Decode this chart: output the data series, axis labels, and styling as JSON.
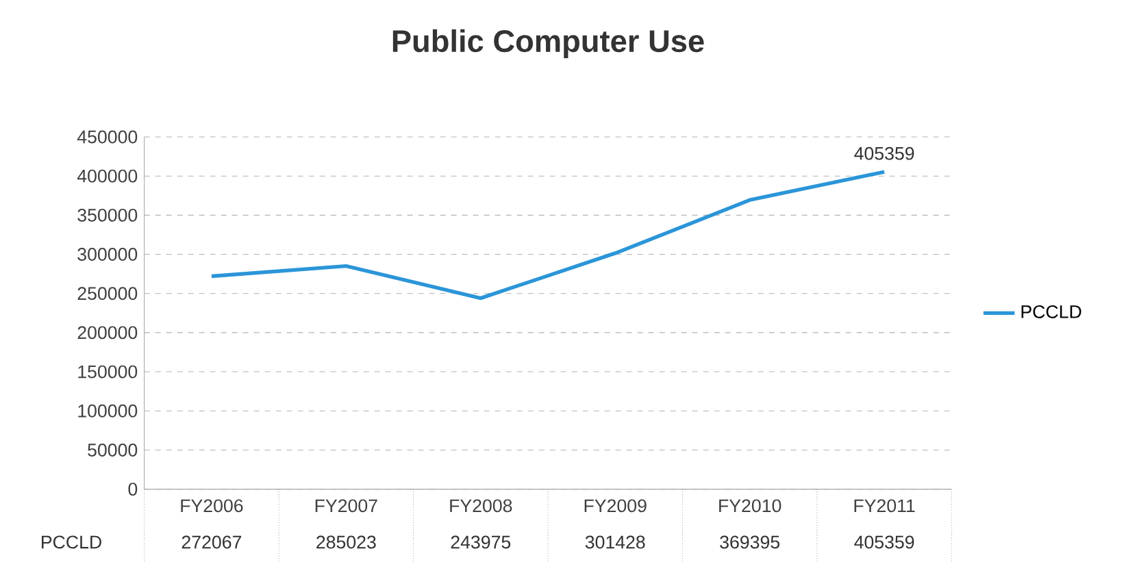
{
  "chart_data": {
    "type": "line",
    "title": "Public Computer Use",
    "categories": [
      "FY2006",
      "FY2007",
      "FY2008",
      "FY2009",
      "FY2010",
      "FY2011"
    ],
    "series": [
      {
        "name": "PCCLD",
        "color": "#2b95d8",
        "values": [
          272067,
          285023,
          243975,
          301428,
          369395,
          405359
        ]
      }
    ],
    "ylim": [
      0,
      450000
    ],
    "yticks": [
      0,
      50000,
      100000,
      150000,
      200000,
      250000,
      300000,
      350000,
      400000,
      450000
    ],
    "grid": "y",
    "legend": "right",
    "marker": "none",
    "line_style": "solid",
    "data_labels": true,
    "annotations": [
      {
        "text": "405359",
        "x": "FY2011",
        "y": 405359
      }
    ]
  }
}
